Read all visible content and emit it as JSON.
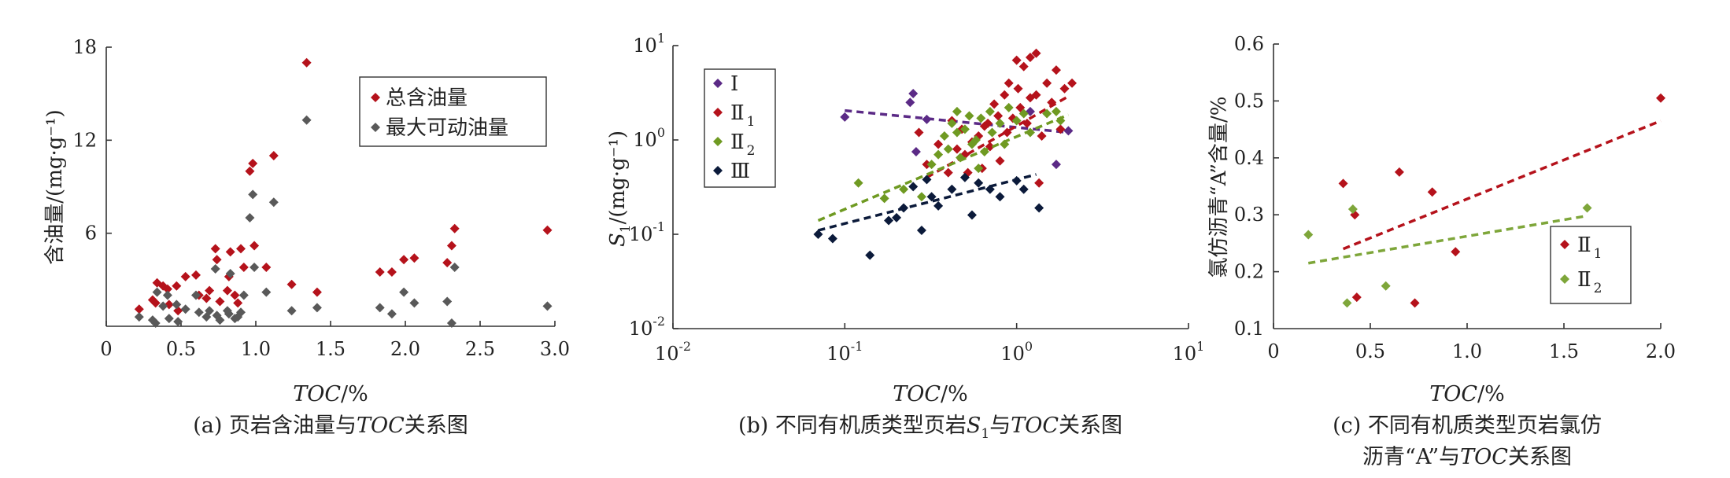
{
  "chart_data": [
    {
      "type": "scatter",
      "xlabel_italic": "TOC",
      "xlabel_unit": "/%",
      "ylabel": "含油量/(mg·g⁻¹)",
      "caption": {
        "prefix": "(a) 页岩含油量与",
        "italic": "TOC",
        "suffix": "关系图"
      },
      "xlim": [
        0,
        3.0
      ],
      "ylim": [
        0,
        18
      ],
      "xticks": [
        {
          "v": 0,
          "label": "0"
        },
        {
          "v": 0.5,
          "label": "0.5"
        },
        {
          "v": 1.0,
          "label": "1.0"
        },
        {
          "v": 1.5,
          "label": "1.5"
        },
        {
          "v": 2.0,
          "label": "2.0"
        },
        {
          "v": 2.5,
          "label": "2.5"
        },
        {
          "v": 3.0,
          "label": "3.0"
        }
      ],
      "yticks": [
        {
          "v": 6,
          "label": "6"
        },
        {
          "v": 12,
          "label": "12"
        },
        {
          "v": 18,
          "label": "18"
        }
      ],
      "legend_position": "top-right",
      "series": [
        {
          "name": "总含油量",
          "color": "#b5121b",
          "points": [
            [
              0.22,
              1.1
            ],
            [
              0.31,
              1.7
            ],
            [
              0.33,
              1.5
            ],
            [
              0.34,
              2.8
            ],
            [
              0.38,
              2.6
            ],
            [
              0.41,
              2.4
            ],
            [
              0.42,
              1.4
            ],
            [
              0.47,
              2.6
            ],
            [
              0.48,
              1.0
            ],
            [
              0.53,
              3.2
            ],
            [
              0.6,
              3.3
            ],
            [
              0.62,
              2.0
            ],
            [
              0.67,
              1.8
            ],
            [
              0.69,
              2.3
            ],
            [
              0.73,
              5.0
            ],
            [
              0.74,
              4.3
            ],
            [
              0.76,
              1.6
            ],
            [
              0.81,
              2.3
            ],
            [
              0.82,
              3.2
            ],
            [
              0.83,
              4.8
            ],
            [
              0.86,
              2.0
            ],
            [
              0.88,
              1.5
            ],
            [
              0.9,
              5.0
            ],
            [
              0.92,
              3.8
            ],
            [
              0.96,
              10.0
            ],
            [
              0.98,
              10.5
            ],
            [
              0.99,
              5.2
            ],
            [
              1.07,
              3.8
            ],
            [
              1.12,
              11.0
            ],
            [
              1.24,
              2.7
            ],
            [
              1.34,
              17.0
            ],
            [
              1.41,
              2.2
            ],
            [
              1.83,
              3.5
            ],
            [
              1.91,
              3.5
            ],
            [
              1.99,
              4.3
            ],
            [
              2.06,
              4.4
            ],
            [
              2.28,
              4.1
            ],
            [
              2.31,
              5.2
            ],
            [
              2.33,
              6.3
            ],
            [
              2.95,
              6.2
            ]
          ]
        },
        {
          "name": "最大可动油量",
          "color": "#595959",
          "points": [
            [
              0.22,
              0.6
            ],
            [
              0.31,
              0.4
            ],
            [
              0.33,
              0.2
            ],
            [
              0.34,
              2.2
            ],
            [
              0.38,
              1.3
            ],
            [
              0.41,
              2.0
            ],
            [
              0.42,
              0.5
            ],
            [
              0.47,
              1.4
            ],
            [
              0.48,
              0.3
            ],
            [
              0.53,
              1.1
            ],
            [
              0.6,
              2.0
            ],
            [
              0.62,
              0.9
            ],
            [
              0.67,
              0.6
            ],
            [
              0.69,
              1.0
            ],
            [
              0.73,
              3.7
            ],
            [
              0.74,
              0.7
            ],
            [
              0.76,
              0.4
            ],
            [
              0.81,
              1.0
            ],
            [
              0.82,
              0.8
            ],
            [
              0.83,
              3.4
            ],
            [
              0.86,
              0.5
            ],
            [
              0.88,
              0.6
            ],
            [
              0.9,
              0.9
            ],
            [
              0.92,
              2.0
            ],
            [
              0.96,
              7.0
            ],
            [
              0.98,
              8.5
            ],
            [
              0.99,
              3.8
            ],
            [
              1.07,
              2.2
            ],
            [
              1.12,
              8.0
            ],
            [
              1.24,
              1.0
            ],
            [
              1.34,
              13.3
            ],
            [
              1.41,
              1.2
            ],
            [
              1.83,
              1.2
            ],
            [
              1.91,
              0.8
            ],
            [
              1.99,
              2.2
            ],
            [
              2.06,
              1.5
            ],
            [
              2.28,
              1.6
            ],
            [
              2.31,
              0.2
            ],
            [
              2.33,
              3.8
            ],
            [
              2.95,
              1.3
            ]
          ]
        }
      ]
    },
    {
      "type": "scatter",
      "xscale": "log",
      "yscale": "log",
      "xlabel_italic": "TOC",
      "xlabel_unit": "/%",
      "ylabel_italic": "S",
      "ylabel_sub": "1",
      "ylabel_rest": "/(mg·g⁻¹)",
      "caption": {
        "prefix": "(b) 不同有机质类型页岩",
        "italic": "S",
        "sub": "1",
        "mid": "与",
        "italic2": "TOC",
        "suffix": "关系图"
      },
      "xlim": [
        0.01,
        10
      ],
      "ylim": [
        0.01,
        10
      ],
      "xticks": [
        {
          "v": 0.01,
          "base": "10",
          "exp": "-2"
        },
        {
          "v": 0.1,
          "base": "10",
          "exp": "-1"
        },
        {
          "v": 1,
          "base": "10",
          "exp": "0"
        },
        {
          "v": 10,
          "base": "10",
          "exp": "1"
        }
      ],
      "yticks": [
        {
          "v": 0.01,
          "base": "10",
          "exp": "-2"
        },
        {
          "v": 0.1,
          "base": "10",
          "exp": "-1"
        },
        {
          "v": 1,
          "base": "10",
          "exp": "0"
        },
        {
          "v": 10,
          "base": "10",
          "exp": "1"
        }
      ],
      "legend_position": "top-left",
      "series": [
        {
          "name": "Ⅰ",
          "sub": "",
          "color": "#5b2a86",
          "points": [
            [
              0.1,
              1.75
            ],
            [
              0.24,
              2.5
            ],
            [
              0.25,
              3.1
            ],
            [
              0.26,
              0.75
            ],
            [
              0.3,
              1.65
            ],
            [
              1.2,
              2.0
            ],
            [
              1.7,
              0.55
            ],
            [
              2.0,
              1.25
            ]
          ],
          "trend": [
            [
              0.1,
              2.05
            ],
            [
              2.0,
              1.2
            ]
          ]
        },
        {
          "name": "Ⅱ",
          "sub": "1",
          "color": "#b5121b",
          "points": [
            [
              0.27,
              1.2
            ],
            [
              0.3,
              0.55
            ],
            [
              0.35,
              0.9
            ],
            [
              0.4,
              0.45
            ],
            [
              0.42,
              1.6
            ],
            [
              0.45,
              0.8
            ],
            [
              0.48,
              1.3
            ],
            [
              0.5,
              0.7
            ],
            [
              0.55,
              0.95
            ],
            [
              0.6,
              1.1
            ],
            [
              0.63,
              0.5
            ],
            [
              0.68,
              1.5
            ],
            [
              0.7,
              0.85
            ],
            [
              0.74,
              2.4
            ],
            [
              0.78,
              1.8
            ],
            [
              0.8,
              0.6
            ],
            [
              0.85,
              3.0
            ],
            [
              0.88,
              1.2
            ],
            [
              0.9,
              4.0
            ],
            [
              0.95,
              1.7
            ],
            [
              1.0,
              7.0
            ],
            [
              1.02,
              3.5
            ],
            [
              1.05,
              2.2
            ],
            [
              1.1,
              6.0
            ],
            [
              1.15,
              1.5
            ],
            [
              1.2,
              7.5
            ],
            [
              1.3,
              8.3
            ],
            [
              1.3,
              3.0
            ],
            [
              1.4,
              1.1
            ],
            [
              1.5,
              4.0
            ],
            [
              1.6,
              2.5
            ],
            [
              1.7,
              5.5
            ],
            [
              1.8,
              1.3
            ],
            [
              1.9,
              3.5
            ],
            [
              2.1,
              4.0
            ],
            [
              1.2,
              2.8
            ],
            [
              0.65,
              1.4
            ],
            [
              0.52,
              0.45
            ],
            [
              1.35,
              0.35
            ]
          ],
          "trend": [
            [
              0.3,
              0.4
            ],
            [
              2.0,
              2.9
            ]
          ]
        },
        {
          "name": "Ⅱ",
          "sub": "2",
          "color": "#6f9a22",
          "points": [
            [
              0.12,
              0.35
            ],
            [
              0.17,
              0.24
            ],
            [
              0.22,
              0.3
            ],
            [
              0.28,
              0.25
            ],
            [
              0.32,
              0.55
            ],
            [
              0.35,
              0.7
            ],
            [
              0.38,
              1.1
            ],
            [
              0.4,
              0.8
            ],
            [
              0.42,
              1.5
            ],
            [
              0.45,
              2.0
            ],
            [
              0.47,
              0.65
            ],
            [
              0.5,
              1.3
            ],
            [
              0.53,
              1.8
            ],
            [
              0.55,
              0.9
            ],
            [
              0.58,
              1.0
            ],
            [
              0.62,
              1.7
            ],
            [
              0.65,
              0.75
            ],
            [
              0.7,
              2.0
            ],
            [
              0.72,
              1.2
            ],
            [
              0.8,
              1.5
            ],
            [
              0.85,
              0.9
            ],
            [
              0.9,
              2.2
            ],
            [
              1.0,
              1.6
            ],
            [
              1.1,
              1.9
            ],
            [
              1.2,
              1.2
            ],
            [
              1.5,
              1.9
            ],
            [
              1.7,
              2.0
            ],
            [
              1.8,
              1.6
            ],
            [
              0.6,
              0.5
            ],
            [
              0.45,
              1.2
            ]
          ],
          "trend": [
            [
              0.07,
              0.14
            ],
            [
              2.0,
              1.85
            ]
          ]
        },
        {
          "name": "Ⅲ",
          "sub": "",
          "color": "#0b1a3a",
          "points": [
            [
              0.07,
              0.1
            ],
            [
              0.085,
              0.09
            ],
            [
              0.14,
              0.06
            ],
            [
              0.18,
              0.14
            ],
            [
              0.2,
              0.15
            ],
            [
              0.22,
              0.19
            ],
            [
              0.25,
              0.32
            ],
            [
              0.28,
              0.11
            ],
            [
              0.3,
              0.38
            ],
            [
              0.32,
              0.25
            ],
            [
              0.35,
              0.2
            ],
            [
              0.42,
              0.3
            ],
            [
              0.5,
              0.4
            ],
            [
              0.55,
              0.16
            ],
            [
              0.6,
              0.35
            ],
            [
              0.7,
              0.3
            ],
            [
              0.8,
              0.25
            ],
            [
              1.0,
              0.37
            ],
            [
              1.1,
              0.3
            ],
            [
              1.35,
              0.19
            ]
          ],
          "trend": [
            [
              0.07,
              0.11
            ],
            [
              1.3,
              0.43
            ]
          ]
        }
      ]
    },
    {
      "type": "scatter",
      "xlabel_italic": "TOC",
      "xlabel_unit": "/%",
      "ylabel": "氯仿沥青“A”含量/%",
      "caption_line1": "(c) 不同有机质类型页岩氯仿",
      "caption_line2": {
        "prefix": "沥青“A”与",
        "italic": "TOC",
        "suffix": "关系图"
      },
      "xlim": [
        0,
        2.0
      ],
      "ylim": [
        0.1,
        0.6
      ],
      "xticks": [
        {
          "v": 0,
          "label": "0"
        },
        {
          "v": 0.5,
          "label": "0.5"
        },
        {
          "v": 1.0,
          "label": "1.0"
        },
        {
          "v": 1.5,
          "label": "1.5"
        },
        {
          "v": 2.0,
          "label": "2.0"
        }
      ],
      "yticks": [
        {
          "v": 0.1,
          "label": "0.1"
        },
        {
          "v": 0.2,
          "label": "0.2"
        },
        {
          "v": 0.3,
          "label": "0.3"
        },
        {
          "v": 0.4,
          "label": "0.4"
        },
        {
          "v": 0.5,
          "label": "0.5"
        },
        {
          "v": 0.6,
          "label": "0.6"
        }
      ],
      "legend_position": "bottom-right",
      "series": [
        {
          "name": "Ⅱ",
          "sub": "1",
          "color": "#b5121b",
          "points": [
            [
              0.36,
              0.355
            ],
            [
              0.42,
              0.3
            ],
            [
              0.43,
              0.155
            ],
            [
              0.65,
              0.375
            ],
            [
              0.73,
              0.145
            ],
            [
              0.82,
              0.34
            ],
            [
              0.94,
              0.235
            ],
            [
              2.0,
              0.505
            ]
          ],
          "trend": [
            [
              0.36,
              0.24
            ],
            [
              2.0,
              0.465
            ]
          ]
        },
        {
          "name": "Ⅱ",
          "sub": "2",
          "color": "#7ea63a",
          "points": [
            [
              0.18,
              0.265
            ],
            [
              0.38,
              0.145
            ],
            [
              0.41,
              0.31
            ],
            [
              0.58,
              0.175
            ],
            [
              1.62,
              0.312
            ]
          ],
          "trend": [
            [
              0.18,
              0.215
            ],
            [
              1.6,
              0.297
            ]
          ]
        }
      ]
    }
  ]
}
